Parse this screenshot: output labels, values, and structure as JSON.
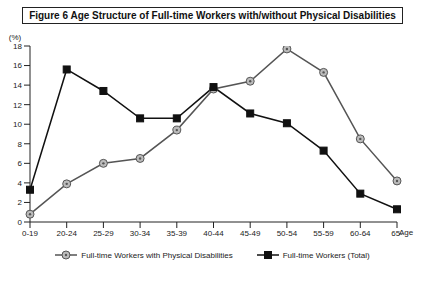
{
  "chart_data": {
    "type": "line",
    "title": "Figure 6 Age Structure of Full-time Workers with/without Physical Disabilities",
    "x_label": "Age",
    "y_label": "(%)",
    "categories": [
      "0-19",
      "20-24",
      "25-29",
      "30-34",
      "35-39",
      "40-44",
      "45-49",
      "50-54",
      "55-59",
      "60-64",
      "65-"
    ],
    "series": [
      {
        "name": "Full-time Workers with Physical Disabilities",
        "color": "#555555",
        "marker": "circle",
        "values": [
          0.8,
          3.9,
          6.0,
          6.5,
          9.4,
          13.6,
          14.4,
          17.7,
          15.3,
          8.5,
          4.2
        ]
      },
      {
        "name": "Full-time Workers (Total)",
        "color": "#111111",
        "marker": "square",
        "values": [
          3.3,
          15.6,
          13.4,
          10.6,
          10.6,
          13.8,
          11.1,
          10.1,
          7.3,
          2.9,
          1.3
        ]
      }
    ],
    "ylim": [
      0,
      18
    ],
    "yticks": [
      0,
      2,
      4,
      6,
      8,
      10,
      12,
      14,
      16,
      18
    ],
    "grid": false,
    "legend": "bottom"
  }
}
